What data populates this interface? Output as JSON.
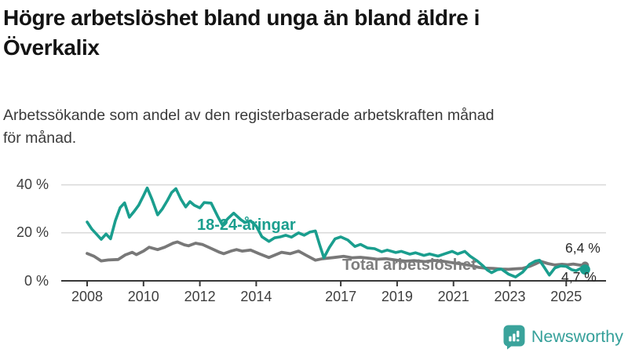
{
  "header": {
    "title_line1": "Högre arbetslöshet bland unga än bland äldre i",
    "title_line2": "Överkalix",
    "subtitle_line1": "Arbetssökande som andel av den registerbaserade arbetskraften månad",
    "subtitle_line2": "för månad."
  },
  "branding": {
    "logo_text": "Newsworthy",
    "logo_color": "#35a09a"
  },
  "chart_data": {
    "type": "line",
    "title": "Högre arbetslöshet bland unga än bland äldre i Överkalix",
    "subtitle": "Arbetssökande som andel av den registerbaserade arbetskraften månad för månad.",
    "unit": "%",
    "grid": "horizontal",
    "x_range": [
      2008,
      2025.75
    ],
    "y_range": [
      0,
      42
    ],
    "x_ticks": [
      2008,
      2010,
      2012,
      2014,
      2017,
      2019,
      2021,
      2023,
      2025
    ],
    "y_ticks": [
      {
        "value": 0,
        "label": "0 %"
      },
      {
        "value": 20,
        "label": "20 %"
      },
      {
        "value": 40,
        "label": "40 %"
      }
    ],
    "axis_color": "#383838",
    "grid_color": "#d9d9d9",
    "series": [
      {
        "id": "youth",
        "name": "18-24-åringar",
        "color": "#1a9e8e",
        "end_value_label": "4,7 %",
        "end_value": 4.7,
        "points": [
          [
            2008,
            24.5
          ],
          [
            2008.17,
            21.5
          ],
          [
            2008.33,
            19.5
          ],
          [
            2008.5,
            17.3
          ],
          [
            2008.67,
            19.5
          ],
          [
            2008.83,
            17.5
          ],
          [
            2009,
            25
          ],
          [
            2009.17,
            30.5
          ],
          [
            2009.33,
            32.5
          ],
          [
            2009.5,
            26.5
          ],
          [
            2009.67,
            29
          ],
          [
            2009.83,
            31.5
          ],
          [
            2010,
            35.5
          ],
          [
            2010.13,
            38.7
          ],
          [
            2010.3,
            34
          ],
          [
            2010.5,
            27.5
          ],
          [
            2010.67,
            30
          ],
          [
            2010.85,
            33.5
          ],
          [
            2011,
            36.8
          ],
          [
            2011.15,
            38.4
          ],
          [
            2011.33,
            34
          ],
          [
            2011.5,
            30.8
          ],
          [
            2011.65,
            33
          ],
          [
            2011.8,
            31.5
          ],
          [
            2012,
            30.4
          ],
          [
            2012.15,
            32.6
          ],
          [
            2012.4,
            32.4
          ],
          [
            2012.65,
            26.5
          ],
          [
            2012.8,
            23.3
          ],
          [
            2013,
            26
          ],
          [
            2013.2,
            28.2
          ],
          [
            2013.45,
            25.5
          ],
          [
            2013.6,
            24.3
          ],
          [
            2013.8,
            25
          ],
          [
            2014,
            22.8
          ],
          [
            2014.2,
            18.4
          ],
          [
            2014.45,
            16.4
          ],
          [
            2014.65,
            17.9
          ],
          [
            2014.85,
            18.3
          ],
          [
            2015.05,
            19
          ],
          [
            2015.25,
            18.2
          ],
          [
            2015.5,
            20
          ],
          [
            2015.7,
            19
          ],
          [
            2015.9,
            20.3
          ],
          [
            2016.1,
            20.8
          ],
          [
            2016.25,
            15
          ],
          [
            2016.4,
            9.6
          ],
          [
            2016.6,
            14
          ],
          [
            2016.8,
            17.5
          ],
          [
            2017,
            18.3
          ],
          [
            2017.25,
            17
          ],
          [
            2017.5,
            14.3
          ],
          [
            2017.7,
            15.2
          ],
          [
            2017.95,
            13.7
          ],
          [
            2018.2,
            13.4
          ],
          [
            2018.45,
            12.1
          ],
          [
            2018.65,
            12.8
          ],
          [
            2018.95,
            11.8
          ],
          [
            2019.15,
            12.3
          ],
          [
            2019.45,
            11.1
          ],
          [
            2019.65,
            11.7
          ],
          [
            2019.95,
            10.6
          ],
          [
            2020.15,
            11.2
          ],
          [
            2020.45,
            10.3
          ],
          [
            2020.7,
            11.3
          ],
          [
            2020.95,
            12.3
          ],
          [
            2021.15,
            11.2
          ],
          [
            2021.4,
            12.3
          ],
          [
            2021.6,
            10.2
          ],
          [
            2021.85,
            8.2
          ],
          [
            2022.05,
            6.2
          ],
          [
            2022.2,
            4.5
          ],
          [
            2022.35,
            3.4
          ],
          [
            2022.55,
            4.6
          ],
          [
            2022.7,
            4.9
          ],
          [
            2022.95,
            2.8
          ],
          [
            2023.2,
            1.6
          ],
          [
            2023.45,
            3.6
          ],
          [
            2023.7,
            6.9
          ],
          [
            2023.9,
            8.2
          ],
          [
            2024.05,
            8.6
          ],
          [
            2024.2,
            6
          ],
          [
            2024.4,
            2.4
          ],
          [
            2024.6,
            5.4
          ],
          [
            2024.8,
            6.2
          ],
          [
            2025,
            6
          ],
          [
            2025.2,
            4.6
          ],
          [
            2025.35,
            4.2
          ],
          [
            2025.55,
            5.4
          ],
          [
            2025.67,
            4.7
          ]
        ]
      },
      {
        "id": "total",
        "name": "Total arbetslöshet",
        "color": "#787878",
        "end_value_label": "6,4 %",
        "end_value": 6.4,
        "points": [
          [
            2008,
            11.4
          ],
          [
            2008.25,
            10.2
          ],
          [
            2008.5,
            8.3
          ],
          [
            2008.75,
            8.7
          ],
          [
            2009.1,
            8.9
          ],
          [
            2009.35,
            10.8
          ],
          [
            2009.6,
            11.9
          ],
          [
            2009.75,
            10.9
          ],
          [
            2010,
            12.4
          ],
          [
            2010.2,
            14
          ],
          [
            2010.5,
            13
          ],
          [
            2010.75,
            14
          ],
          [
            2011.05,
            15.7
          ],
          [
            2011.2,
            16.2
          ],
          [
            2011.45,
            15
          ],
          [
            2011.6,
            14.6
          ],
          [
            2011.85,
            15.7
          ],
          [
            2012.1,
            15.1
          ],
          [
            2012.4,
            13.5
          ],
          [
            2012.7,
            11.9
          ],
          [
            2012.85,
            11.3
          ],
          [
            2013.1,
            12.4
          ],
          [
            2013.3,
            13
          ],
          [
            2013.5,
            12.4
          ],
          [
            2013.8,
            12.8
          ],
          [
            2014.1,
            11.3
          ],
          [
            2014.45,
            9.7
          ],
          [
            2014.9,
            11.9
          ],
          [
            2015.2,
            11.3
          ],
          [
            2015.5,
            12.4
          ],
          [
            2015.75,
            10.8
          ],
          [
            2016.1,
            8.6
          ],
          [
            2016.35,
            9.2
          ],
          [
            2016.75,
            9.7
          ],
          [
            2017.1,
            10.2
          ],
          [
            2017.4,
            9.6
          ],
          [
            2017.7,
            9.8
          ],
          [
            2018,
            9.4
          ],
          [
            2018.3,
            9
          ],
          [
            2018.6,
            9.2
          ],
          [
            2019,
            8.6
          ],
          [
            2019.3,
            8.2
          ],
          [
            2019.6,
            8.4
          ],
          [
            2020,
            8
          ],
          [
            2020.3,
            8.5
          ],
          [
            2020.6,
            8.2
          ],
          [
            2021,
            7.5
          ],
          [
            2021.3,
            7
          ],
          [
            2021.6,
            6.4
          ],
          [
            2021.9,
            5.6
          ],
          [
            2022.1,
            5.3
          ],
          [
            2022.4,
            5.2
          ],
          [
            2022.7,
            4.9
          ],
          [
            2022.95,
            4.8
          ],
          [
            2023.2,
            5
          ],
          [
            2023.45,
            5.2
          ],
          [
            2023.7,
            6
          ],
          [
            2023.95,
            7.3
          ],
          [
            2024.1,
            8.1
          ],
          [
            2024.35,
            7.2
          ],
          [
            2024.6,
            6.6
          ],
          [
            2024.85,
            6.9
          ],
          [
            2025.05,
            6.7
          ],
          [
            2025.25,
            7
          ],
          [
            2025.45,
            6.6
          ],
          [
            2025.67,
            6.4
          ]
        ]
      }
    ]
  }
}
